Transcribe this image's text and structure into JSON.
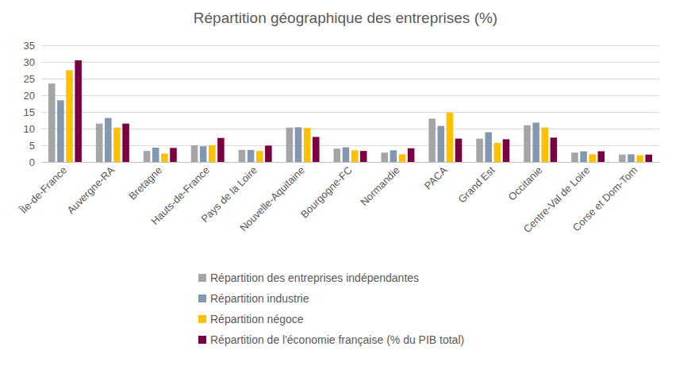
{
  "chart_data": {
    "type": "bar",
    "title": "Répartition géographique des entreprises (%)",
    "categories": [
      "Île-de-France",
      "Auvergne-RA",
      "Bretagne",
      "Hauts-de-France",
      "Pays de la Loire",
      "Nouvelle-Aquitaine",
      "Bourgogne-FC",
      "Normandie",
      "PACA",
      "Grand Est",
      "Occitanie",
      "Centre-Val de Loire",
      "Corse et Dom-Tom"
    ],
    "series": [
      {
        "name": "Répartition des entreprises indépendantes",
        "color": "#a5a5a5",
        "values": [
          23.5,
          11.5,
          3.3,
          5,
          3.6,
          10.3,
          4,
          2.8,
          13,
          7,
          11,
          2.8,
          2.2
        ]
      },
      {
        "name": "Répartition industrie",
        "color": "#8497b0",
        "values": [
          18.5,
          13.2,
          4.3,
          4.7,
          3.6,
          10.4,
          4.4,
          3.5,
          10.8,
          8.9,
          11.8,
          3.2,
          2.3
        ]
      },
      {
        "name": "Répartition négoce",
        "color": "#ffc000",
        "values": [
          27.5,
          10.3,
          2.5,
          5,
          3.3,
          10.2,
          3.5,
          2.3,
          14.8,
          5.7,
          10.3,
          2.3,
          2
        ]
      },
      {
        "name": "Répartition de l'économie française (% du PIB total)",
        "color": "#7b0041",
        "values": [
          30.5,
          11.5,
          4.2,
          7.2,
          4.9,
          7.5,
          3.3,
          4.1,
          7,
          6.8,
          7.3,
          3.2,
          2.2
        ]
      }
    ],
    "ylim": [
      0,
      35
    ],
    "yticks": [
      0,
      5,
      10,
      15,
      20,
      25,
      30,
      35
    ],
    "grid": true,
    "legend": "bottom"
  }
}
